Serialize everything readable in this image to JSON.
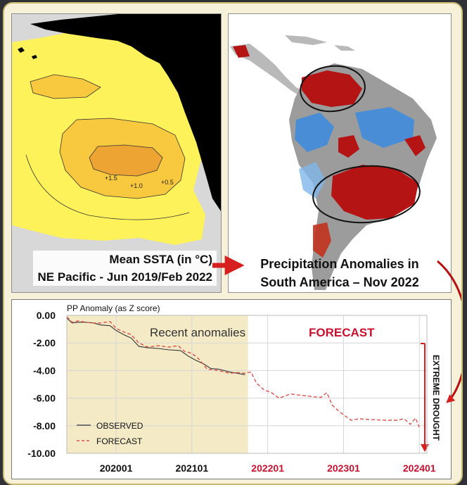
{
  "ssta_map": {
    "caption_line1": "Mean SSTA (in °C)",
    "caption_line2": "NE Pacific - Jun 2019/Feb 2022",
    "contour_labels": [
      "+1.5",
      "+1.0",
      "+0.5"
    ]
  },
  "precip_map": {
    "caption_line1": "Precipitation Anomalies in",
    "caption_line2": "South America – Nov 2022"
  },
  "chart_data": {
    "type": "line",
    "title": "PP Anomaly (as Z score)",
    "ylim": [
      -10.0,
      0.0
    ],
    "yticks": [
      "0.00",
      "-2.00",
      "-4.00",
      "-6.00",
      "-8.00",
      "-10.00"
    ],
    "xticks": [
      {
        "label": "202001",
        "x": 2020.0,
        "forecast": false
      },
      {
        "label": "202101",
        "x": 2021.0,
        "forecast": false
      },
      {
        "label": "202201",
        "x": 2022.0,
        "forecast": true
      },
      {
        "label": "202301",
        "x": 2023.0,
        "forecast": true
      },
      {
        "label": "202401",
        "x": 2024.0,
        "forecast": true
      }
    ],
    "xlim": [
      2019.35,
      2024.1
    ],
    "recent_region_label": "Recent anomalies",
    "forecast_region_label": "FORECAST",
    "forecast_start_x": 2021.74,
    "vertical_annotation": "EXTREME DROUGHT",
    "grid": true,
    "legend_position": "bottom-left",
    "colors": {
      "observed": "#333333",
      "forecast": "#d9534f",
      "recent_shade": "#f4eac6",
      "forecast_label": "#c8102e",
      "drought_arrow": "#d62020"
    },
    "series": [
      {
        "name": "OBSERVED",
        "x": [
          2019.35,
          2019.42,
          2019.5,
          2019.6,
          2019.7,
          2019.8,
          2019.92,
          2020.0,
          2020.1,
          2020.2,
          2020.3,
          2020.42,
          2020.55,
          2020.7,
          2020.85,
          2020.95,
          2021.05,
          2021.15,
          2021.25,
          2021.35,
          2021.5,
          2021.6,
          2021.7
        ],
        "values": [
          -0.2,
          -0.55,
          -0.5,
          -0.5,
          -0.55,
          -0.7,
          -0.75,
          -1.1,
          -1.4,
          -1.65,
          -2.25,
          -2.35,
          -2.4,
          -2.5,
          -2.55,
          -2.95,
          -3.25,
          -3.5,
          -3.85,
          -3.9,
          -4.1,
          -4.2,
          -4.3
        ]
      },
      {
        "name": "FORECAST",
        "x": [
          2019.35,
          2019.42,
          2019.5,
          2019.6,
          2019.7,
          2019.8,
          2019.92,
          2020.0,
          2020.1,
          2020.2,
          2020.3,
          2020.42,
          2020.55,
          2020.7,
          2020.82,
          2020.9,
          2021.0,
          2021.1,
          2021.2,
          2021.35,
          2021.5,
          2021.6,
          2021.7,
          2021.78,
          2021.85,
          2021.95,
          2022.05,
          2022.15,
          2022.3,
          2022.45,
          2022.6,
          2022.7,
          2022.78,
          2022.85,
          2022.95,
          2023.1,
          2023.2,
          2023.35,
          2023.55,
          2023.7,
          2023.8,
          2023.88,
          2023.95,
          2024.0
        ],
        "values": [
          -0.1,
          -0.5,
          -0.4,
          -0.5,
          -0.55,
          -0.55,
          -0.45,
          -0.95,
          -1.2,
          -1.4,
          -2.0,
          -2.3,
          -2.2,
          -2.3,
          -2.2,
          -2.6,
          -2.75,
          -3.2,
          -3.9,
          -4.0,
          -4.2,
          -4.15,
          -4.2,
          -4.1,
          -4.9,
          -5.4,
          -5.6,
          -6.0,
          -5.7,
          -5.8,
          -5.9,
          -5.95,
          -5.6,
          -6.5,
          -7.0,
          -7.6,
          -7.5,
          -7.55,
          -7.6,
          -7.6,
          -7.5,
          -7.9,
          -7.45,
          -8.1
        ]
      }
    ]
  }
}
